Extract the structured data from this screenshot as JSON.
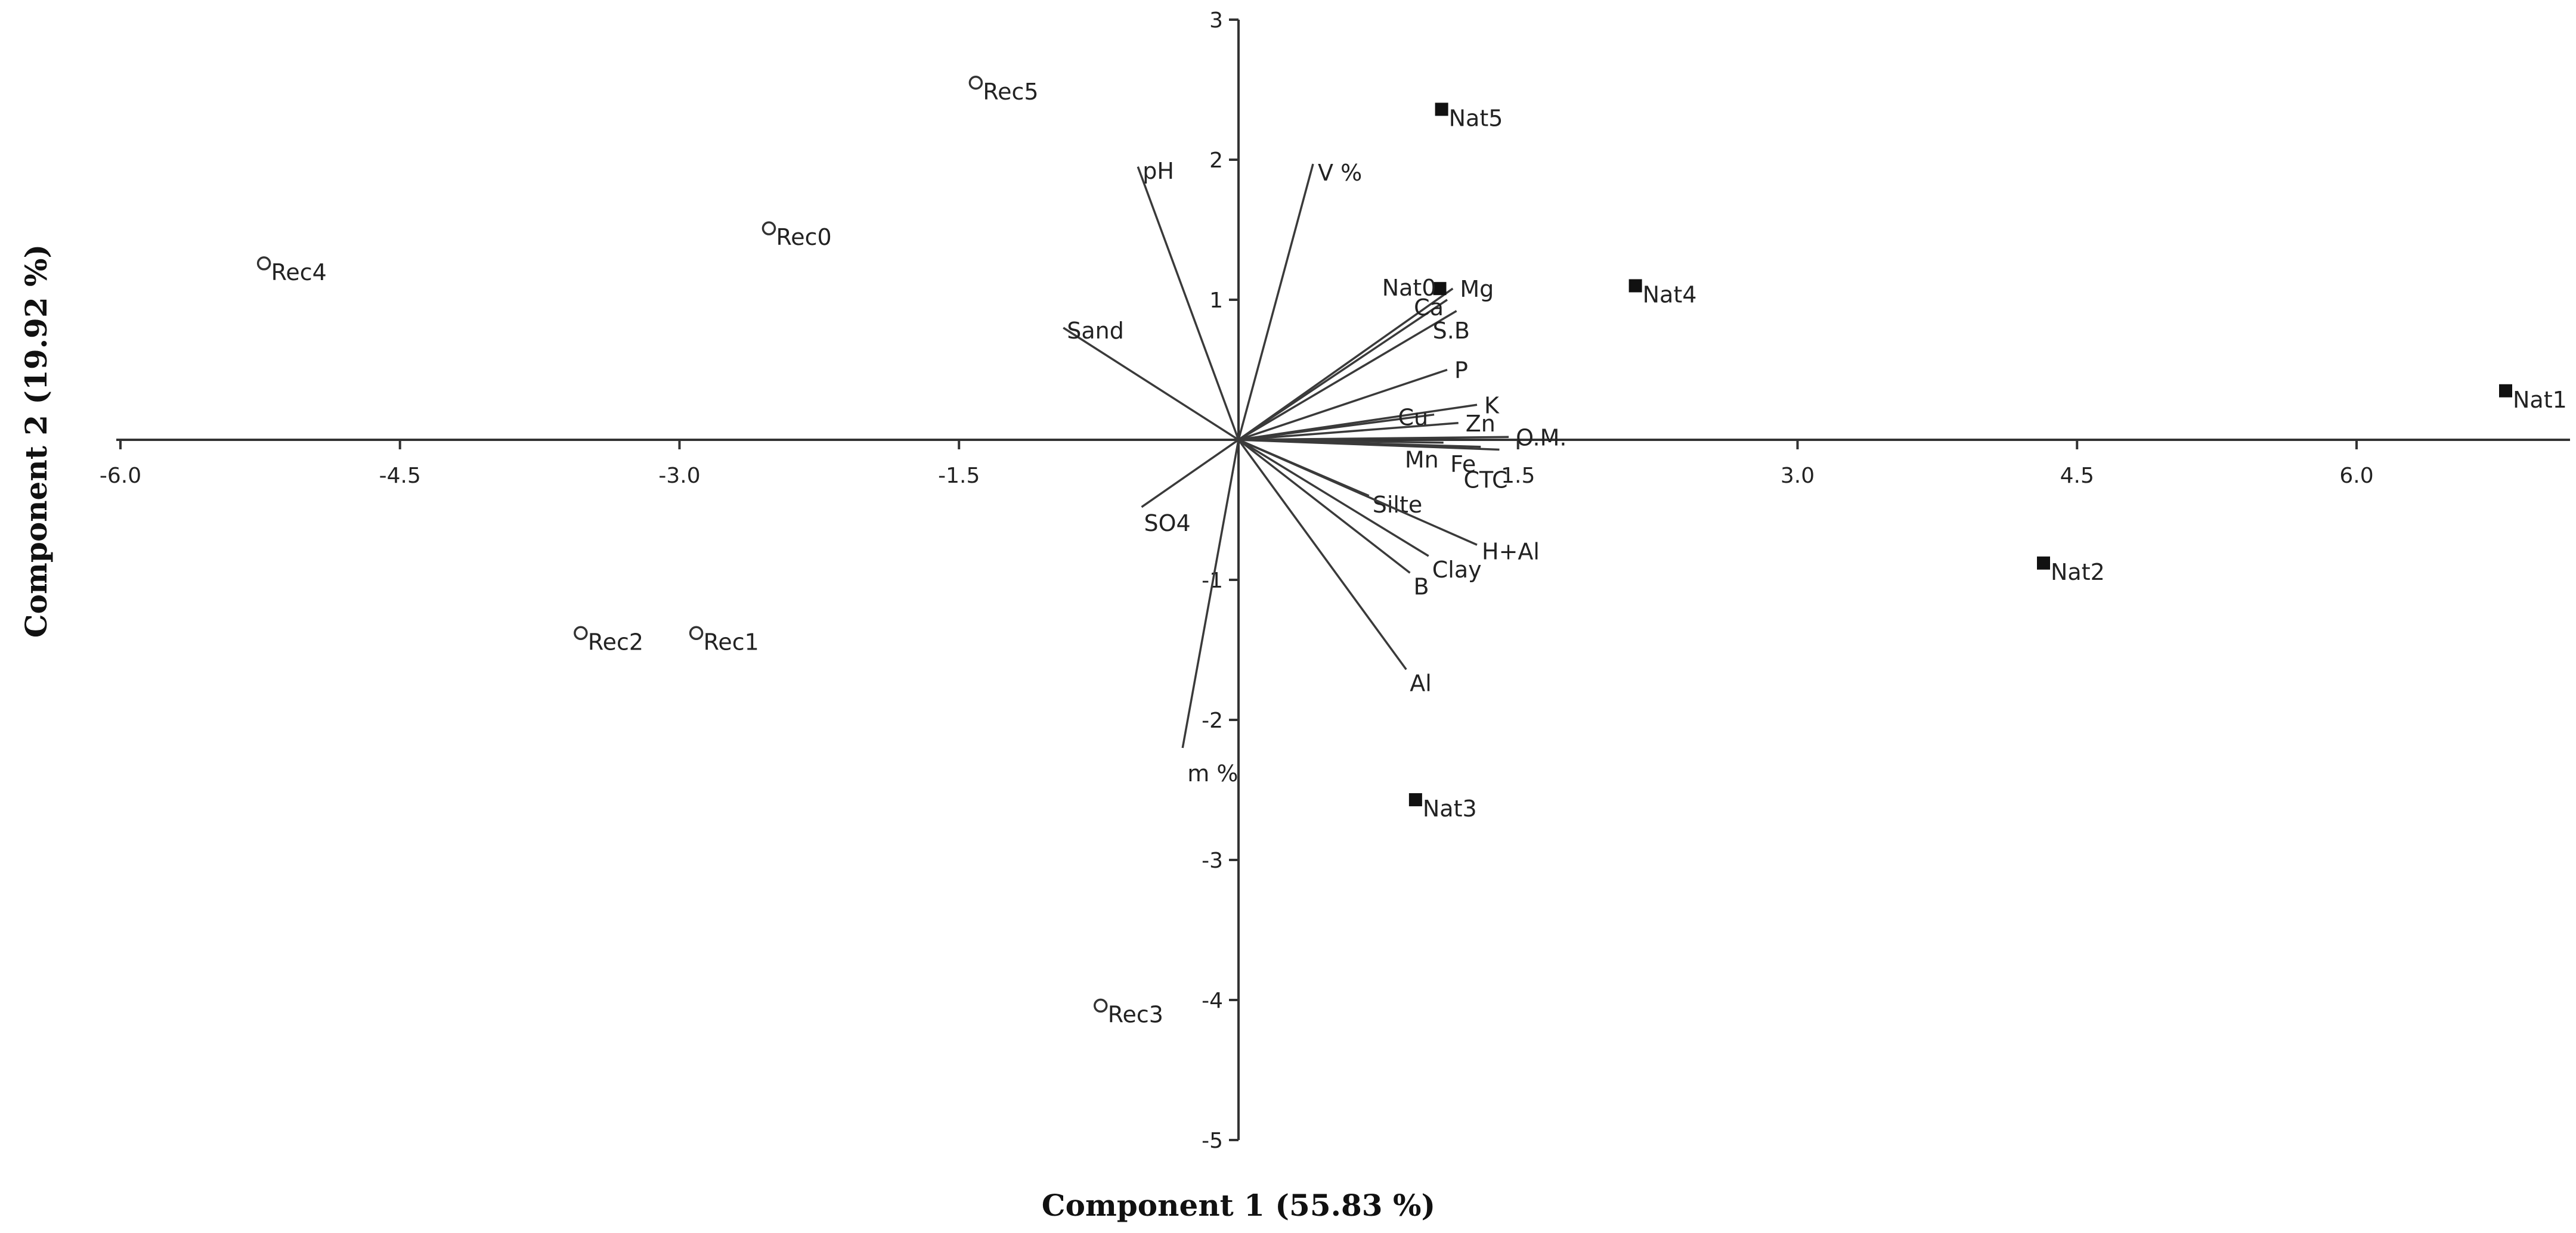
{
  "chart_data": {
    "type": "scatter",
    "title": "",
    "xlabel": "Component 1 (55.83 %)",
    "ylabel": "Component 2 (19.92 %)",
    "xlim": [
      -6.0,
      7.0
    ],
    "ylim": [
      -5,
      3
    ],
    "grid": false,
    "x_ticks": [
      -6.0,
      -4.5,
      -3.0,
      -1.5,
      1.5,
      3.0,
      4.5,
      6.0
    ],
    "x_tick_labels": [
      "-6.0",
      "-4.5",
      "-3.0",
      "-1.5",
      "1.5",
      "3.0",
      "4.5",
      "6.0"
    ],
    "y_ticks": [
      3,
      2,
      1,
      -1,
      -2,
      -3,
      -4,
      -5
    ],
    "y_tick_labels": [
      "3",
      "2",
      "1",
      "-1",
      "-2",
      "-3",
      "-4",
      "-5"
    ],
    "series": [
      {
        "marker": "open-circle",
        "points": [
          {
            "label": "Rec0",
            "x": -2.52,
            "y": 1.51
          },
          {
            "label": "Rec1",
            "x": -2.91,
            "y": -1.38
          },
          {
            "label": "Rec2",
            "x": -3.53,
            "y": -1.38
          },
          {
            "label": "Rec3",
            "x": -0.74,
            "y": -4.04
          },
          {
            "label": "Rec4",
            "x": -5.23,
            "y": 1.26
          },
          {
            "label": "Rec5",
            "x": -1.41,
            "y": 2.55
          }
        ]
      },
      {
        "marker": "filled-square",
        "points": [
          {
            "label": "Nat0",
            "x": 1.08,
            "y": 1.08
          },
          {
            "label": "Nat1",
            "x": 6.8,
            "y": 0.35
          },
          {
            "label": "Nat2",
            "x": 4.32,
            "y": -0.88
          },
          {
            "label": "Nat3",
            "x": 0.95,
            "y": -2.57
          },
          {
            "label": "Nat4",
            "x": 2.13,
            "y": 1.1
          },
          {
            "label": "Nat5",
            "x": 1.09,
            "y": 2.36
          }
        ]
      }
    ],
    "vectors": [
      {
        "label": "pH",
        "x": -0.54,
        "y": 1.95
      },
      {
        "label": "V %",
        "x": 0.4,
        "y": 1.97
      },
      {
        "label": "Sand",
        "x": -0.94,
        "y": 0.8
      },
      {
        "label": "Mg",
        "x": 1.15,
        "y": 1.08
      },
      {
        "label": "Ca",
        "x": 1.12,
        "y": 1.0
      },
      {
        "label": "S.B",
        "x": 1.17,
        "y": 0.92
      },
      {
        "label": "P",
        "x": 1.12,
        "y": 0.5
      },
      {
        "label": "K",
        "x": 1.28,
        "y": 0.25
      },
      {
        "label": "Cu",
        "x": 1.05,
        "y": 0.18
      },
      {
        "label": "Zn",
        "x": 1.18,
        "y": 0.12
      },
      {
        "label": "O.M.",
        "x": 1.45,
        "y": 0.02
      },
      {
        "label": "Mn",
        "x": 1.1,
        "y": -0.02
      },
      {
        "label": "Fe",
        "x": 1.3,
        "y": -0.05
      },
      {
        "label": "CTC",
        "x": 1.4,
        "y": -0.07
      },
      {
        "label": "Silte",
        "x": 0.7,
        "y": -0.4
      },
      {
        "label": "H+Al",
        "x": 1.28,
        "y": -0.75
      },
      {
        "label": "Clay",
        "x": 1.02,
        "y": -0.83
      },
      {
        "label": "B",
        "x": 0.92,
        "y": -0.95
      },
      {
        "label": "Al",
        "x": 0.9,
        "y": -1.64
      },
      {
        "label": "SO4",
        "x": -0.52,
        "y": -0.48
      },
      {
        "label": "m %",
        "x": -0.3,
        "y": -2.2
      }
    ]
  }
}
